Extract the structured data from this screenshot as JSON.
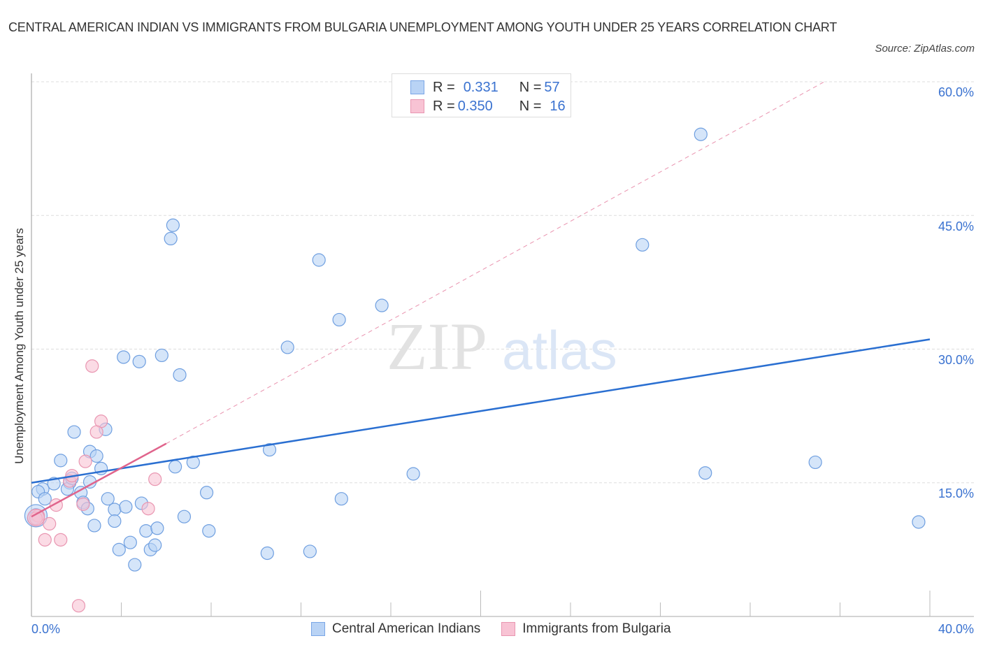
{
  "header": {
    "title": "CENTRAL AMERICAN INDIAN VS IMMIGRANTS FROM BULGARIA UNEMPLOYMENT AMONG YOUTH UNDER 25 YEARS CORRELATION CHART",
    "source": "Source: ZipAtlas.com"
  },
  "watermark": {
    "zip": "ZIP",
    "atlas": "atlas"
  },
  "legend_top": {
    "rows": [
      {
        "r_label": "R = ",
        "r_value": "0.331",
        "n_label": "N = ",
        "n_value": "57",
        "color": "#b9d3f5"
      },
      {
        "r_label": "R = ",
        "r_value": "0.350",
        "n_label": "N = ",
        "n_value": "16",
        "color": "#f8c3d4"
      }
    ]
  },
  "legend_bottom": {
    "items": [
      {
        "label": "Central American Indians",
        "color": "#b9d3f5",
        "border": "#7aa6e6"
      },
      {
        "label": "Immigrants from Bulgaria",
        "color": "#f8c3d4",
        "border": "#e996b1"
      }
    ]
  },
  "axes": {
    "x_min_label": "0.0%",
    "x_max_label": "40.0%",
    "y_ticks": [
      "60.0%",
      "45.0%",
      "30.0%",
      "15.0%"
    ],
    "ylabel": "Unemployment Among Youth under 25 years"
  },
  "colors": {
    "blue_fill": "#b9d3f5",
    "blue_stroke": "#6f9fe0",
    "blue_line": "#2a6fd1",
    "pink_fill": "#f8c3d4",
    "pink_stroke": "#e996b1",
    "pink_line": "#e0648c",
    "axis_text": "#3a72d0"
  },
  "chart_data": {
    "type": "scatter",
    "title": "CENTRAL AMERICAN INDIAN VS IMMIGRANTS FROM BULGARIA UNEMPLOYMENT AMONG YOUTH UNDER 25 YEARS CORRELATION CHART",
    "xlabel": "",
    "ylabel": "Unemployment Among Youth under 25 years",
    "xlim": [
      0,
      40
    ],
    "ylim": [
      0,
      60
    ],
    "x_ticks": [
      "0.0%",
      "40.0%"
    ],
    "y_ticks": [
      "15.0%",
      "30.0%",
      "45.0%",
      "60.0%"
    ],
    "grid": true,
    "legend_position": "bottom",
    "series": [
      {
        "name": "Central American Indians",
        "R": 0.331,
        "N": 57,
        "trend": {
          "x": [
            0,
            40
          ],
          "y": [
            15.0,
            31.1
          ]
        },
        "points": [
          [
            29.8,
            54.1
          ],
          [
            6.3,
            43.9
          ],
          [
            6.2,
            42.4
          ],
          [
            27.2,
            41.7
          ],
          [
            12.8,
            40.0
          ],
          [
            15.6,
            34.9
          ],
          [
            13.7,
            33.3
          ],
          [
            11.4,
            30.2
          ],
          [
            4.1,
            29.1
          ],
          [
            4.8,
            28.6
          ],
          [
            5.8,
            29.3
          ],
          [
            6.6,
            27.1
          ],
          [
            1.9,
            20.7
          ],
          [
            3.3,
            21.0
          ],
          [
            2.6,
            18.5
          ],
          [
            2.9,
            18.0
          ],
          [
            1.3,
            17.5
          ],
          [
            3.1,
            16.6
          ],
          [
            10.6,
            18.7
          ],
          [
            6.4,
            16.8
          ],
          [
            7.2,
            17.3
          ],
          [
            17.0,
            16.0
          ],
          [
            30.0,
            16.1
          ],
          [
            34.9,
            17.3
          ],
          [
            0.5,
            14.3
          ],
          [
            0.3,
            14.0
          ],
          [
            0.6,
            13.2
          ],
          [
            1.0,
            14.9
          ],
          [
            1.7,
            15.0
          ],
          [
            1.6,
            14.3
          ],
          [
            2.2,
            13.9
          ],
          [
            2.3,
            12.8
          ],
          [
            2.5,
            12.1
          ],
          [
            1.8,
            15.5
          ],
          [
            2.6,
            15.1
          ],
          [
            3.4,
            13.2
          ],
          [
            3.7,
            12.0
          ],
          [
            4.2,
            12.3
          ],
          [
            4.9,
            12.7
          ],
          [
            2.8,
            10.2
          ],
          [
            3.7,
            10.7
          ],
          [
            6.8,
            11.2
          ],
          [
            7.8,
            13.9
          ],
          [
            13.8,
            13.2
          ],
          [
            39.5,
            10.6
          ],
          [
            0.2,
            11.4
          ],
          [
            0.1,
            11.0
          ],
          [
            5.1,
            9.6
          ],
          [
            5.6,
            9.9
          ],
          [
            7.9,
            9.6
          ],
          [
            4.4,
            8.3
          ],
          [
            3.9,
            7.5
          ],
          [
            5.3,
            7.5
          ],
          [
            5.5,
            8.0
          ],
          [
            4.6,
            5.8
          ],
          [
            10.5,
            7.1
          ],
          [
            12.4,
            7.3
          ]
        ]
      },
      {
        "name": "Immigrants from Bulgaria",
        "R": 0.35,
        "N": 16,
        "trend": {
          "x": [
            0,
            6.0
          ],
          "y": [
            11.2,
            19.4
          ],
          "dashed_extension": {
            "x": [
              6.0,
              35.3
            ],
            "y": [
              19.4,
              60.0
            ]
          }
        },
        "points": [
          [
            2.7,
            28.1
          ],
          [
            3.1,
            21.9
          ],
          [
            2.9,
            20.7
          ],
          [
            2.4,
            17.4
          ],
          [
            1.7,
            15.2
          ],
          [
            5.5,
            15.4
          ],
          [
            2.3,
            12.6
          ],
          [
            1.1,
            12.5
          ],
          [
            5.2,
            12.1
          ],
          [
            0.3,
            11.3
          ],
          [
            0.2,
            11.0
          ],
          [
            0.8,
            10.4
          ],
          [
            0.6,
            8.6
          ],
          [
            1.3,
            8.6
          ],
          [
            2.1,
            1.2
          ],
          [
            1.8,
            15.8
          ]
        ]
      }
    ]
  }
}
